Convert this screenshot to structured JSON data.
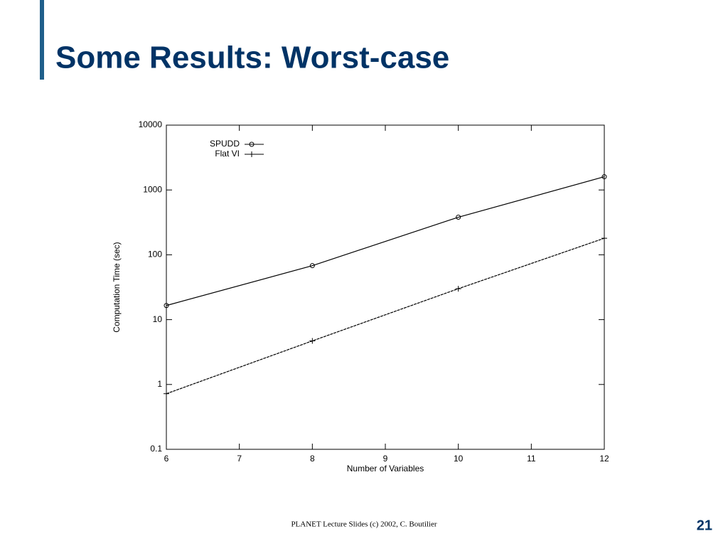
{
  "title": "Some Results: Worst-case",
  "footer": "PLANET Lecture Slides (c) 2002, C. Boutilier",
  "page_number": "21",
  "chart_data": {
    "type": "line",
    "xlabel": "Number of Variables",
    "ylabel": "Computation Time (sec)",
    "x": [
      6,
      8,
      10,
      12
    ],
    "series": [
      {
        "name": "SPUDD",
        "color": "#000000",
        "marker": "circle",
        "values": [
          16.5,
          68,
          380,
          1600
        ]
      },
      {
        "name": "Flat VI",
        "color": "#000000",
        "marker": "plus",
        "values": [
          0.72,
          4.7,
          30,
          180
        ]
      }
    ],
    "xlim": [
      6,
      12
    ],
    "xticks": [
      6,
      7,
      8,
      9,
      10,
      11,
      12
    ],
    "ylim": [
      0.1,
      10000
    ],
    "yticks": [
      0.1,
      1,
      10,
      100,
      1000,
      10000
    ],
    "log_y": true,
    "grid": false,
    "legend": "upper left"
  }
}
